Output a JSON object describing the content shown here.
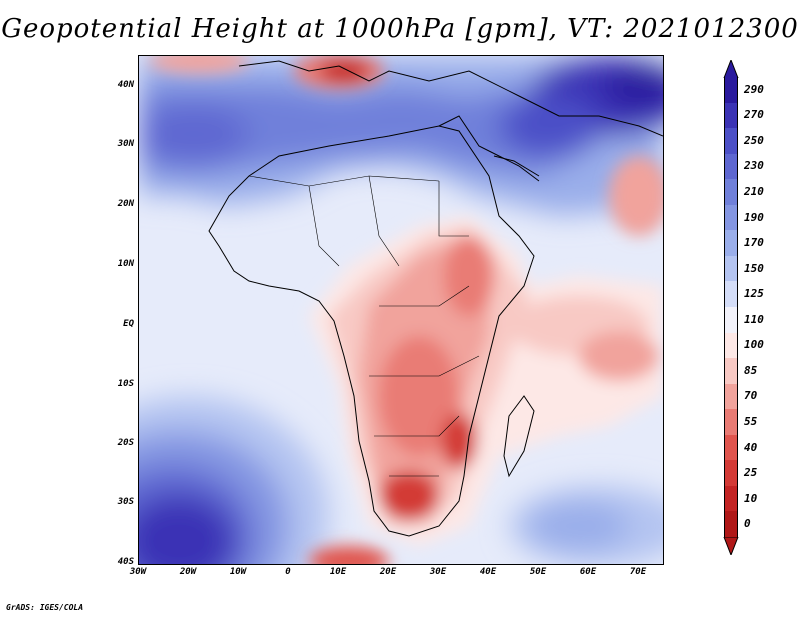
{
  "title": "Geopotential Height at 1000hPa [gpm], VT: 2021012300",
  "credit": "GrADS: IGES/COLA",
  "map": {
    "projection": "lat-lon",
    "lon_range": [
      -30,
      75
    ],
    "lat_range": [
      -40,
      45
    ],
    "field": "Geopotential Height at 1000hPa",
    "units": "gpm",
    "valid_time": "2021012300",
    "lat_ticks": [
      "40N",
      "30N",
      "20N",
      "10N",
      "EQ",
      "10S",
      "20S",
      "30S",
      "40S"
    ],
    "lon_ticks": [
      "30W",
      "20W",
      "10W",
      "0",
      "10E",
      "20E",
      "30E",
      "40E",
      "50E",
      "60E",
      "70E"
    ]
  },
  "colorbar": {
    "labels": [
      "290",
      "270",
      "250",
      "230",
      "210",
      "190",
      "170",
      "150",
      "125",
      "110",
      "100",
      "85",
      "70",
      "55",
      "40",
      "25",
      "10",
      "0"
    ],
    "colors": [
      "#2a1a9e",
      "#3b33b5",
      "#4c50c7",
      "#5e67d1",
      "#7080da",
      "#8496e2",
      "#9aaeea",
      "#b4c4f1",
      "#d4ddf8",
      "#f2f2fa",
      "#fde8e6",
      "#f8c9c4",
      "#f1a39c",
      "#e97b74",
      "#e0554e",
      "#d33a36",
      "#c32424",
      "#b01818"
    ]
  }
}
